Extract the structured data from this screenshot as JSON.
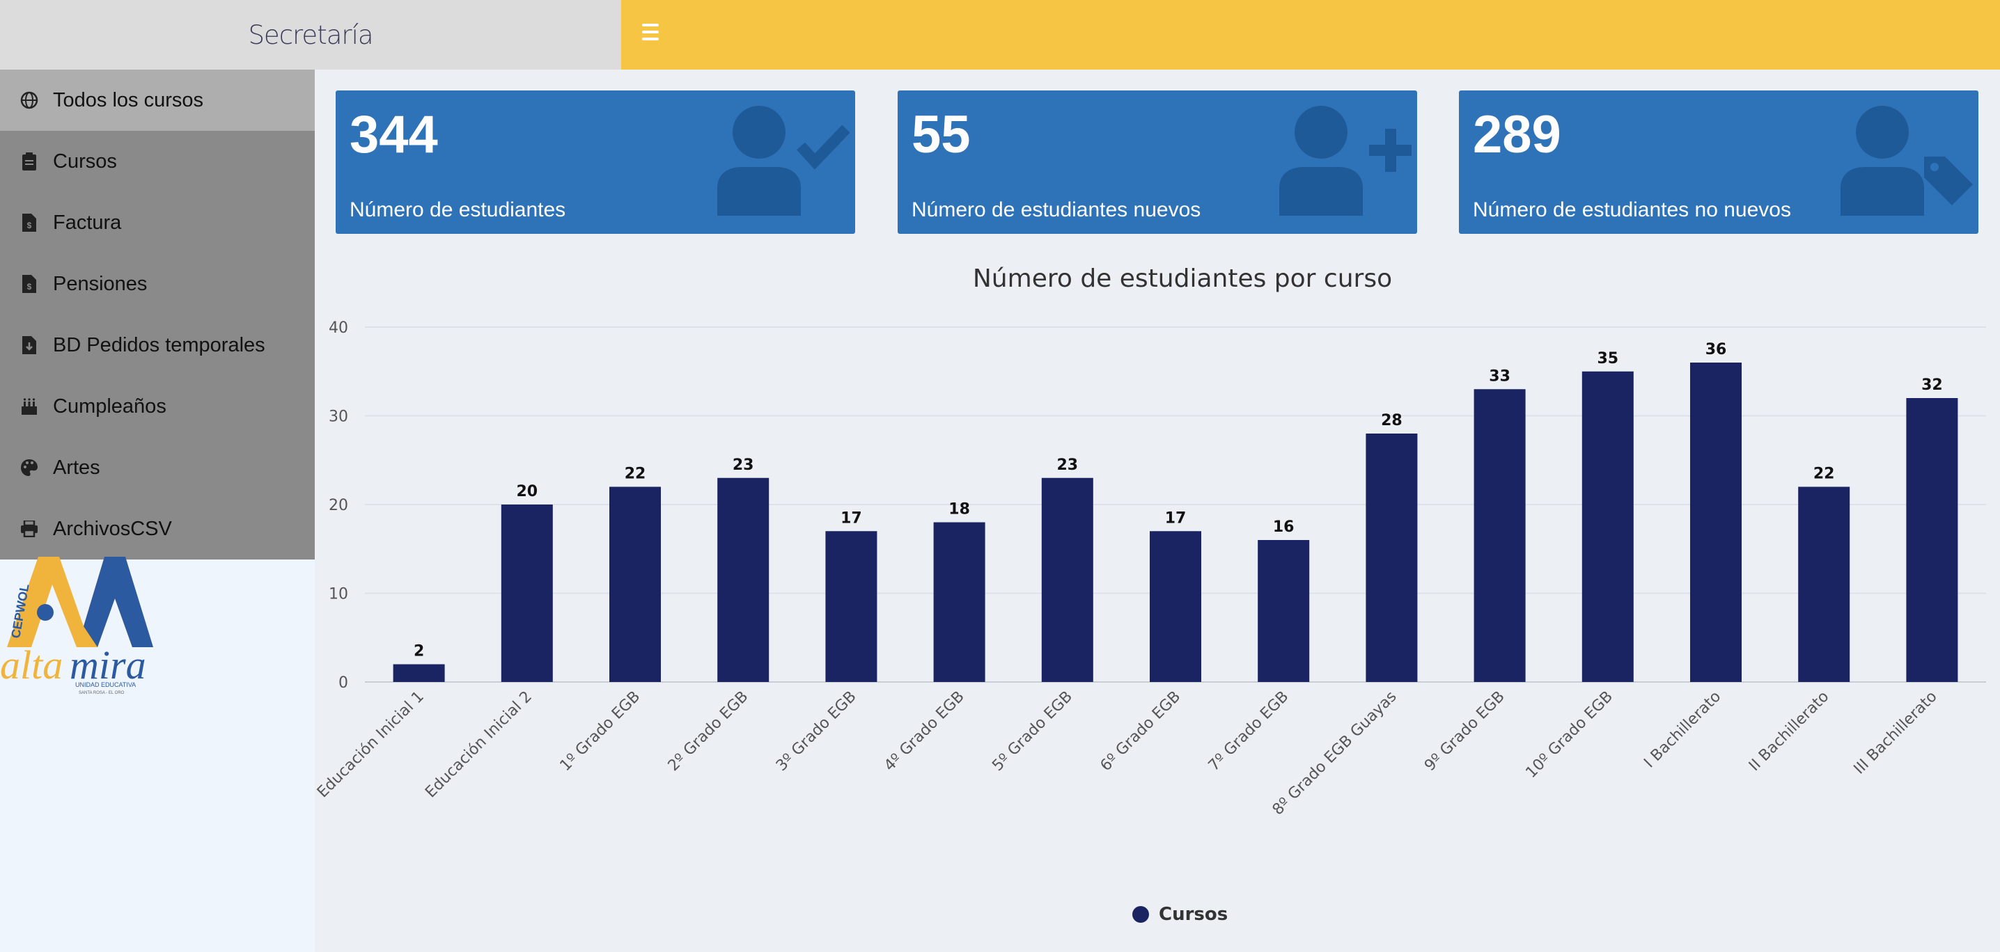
{
  "header": {
    "brand": "Secretaría"
  },
  "sidebar": {
    "items": [
      {
        "label": "Todos los cursos",
        "icon": "globe-icon",
        "active": true
      },
      {
        "label": "Cursos",
        "icon": "clipboard-icon"
      },
      {
        "label": "Factura",
        "icon": "invoice-icon"
      },
      {
        "label": "Pensiones",
        "icon": "invoice-icon"
      },
      {
        "label": "BD Pedidos temporales",
        "icon": "file-download-icon"
      },
      {
        "label": "Cumpleaños",
        "icon": "birthday-cake-icon"
      },
      {
        "label": "Artes",
        "icon": "palette-icon"
      },
      {
        "label": "ArchivosCSV",
        "icon": "print-icon"
      }
    ]
  },
  "logo": {
    "text": "altamira",
    "sub": "UNIDAD EDUCATIVA",
    "vertical": "CEPWOL",
    "tiny": "SANTA ROSA - EL ORO"
  },
  "cards": [
    {
      "value": "344",
      "label": "Número de estudiantes",
      "icon": "user-check-icon"
    },
    {
      "value": "55",
      "label": "Número de estudiantes nuevos",
      "icon": "user-plus-icon"
    },
    {
      "value": "289",
      "label": "Número de estudiantes no nuevos",
      "icon": "user-tag-icon"
    }
  ],
  "colors": {
    "topbar": "#f6c544",
    "card": "#2e73b8",
    "bar": "#1b2463",
    "sidebar": "#8a8a8a"
  },
  "chart_data": {
    "type": "bar",
    "title": "Número de estudiantes por curso",
    "categories": [
      "Educación Inicial 1",
      "Educación Inicial 2",
      "1º Grado EGB",
      "2º Grado EGB",
      "3º Grado EGB",
      "4º Grado EGB",
      "5º Grado EGB",
      "6º Grado EGB",
      "7º Grado EGB",
      "8º Grado EGB Guayas",
      "9º Grado EGB",
      "10º Grado EGB",
      "I Bachillerato",
      "II Bachillerato",
      "III Bachillerato"
    ],
    "series": [
      {
        "name": "Cursos",
        "values": [
          2,
          20,
          22,
          23,
          17,
          18,
          23,
          17,
          16,
          28,
          33,
          35,
          36,
          22,
          32
        ]
      }
    ],
    "ylim": [
      0,
      40
    ],
    "yticks": [
      0,
      10,
      20,
      30,
      40
    ],
    "grid": true,
    "legend": "bottom"
  }
}
